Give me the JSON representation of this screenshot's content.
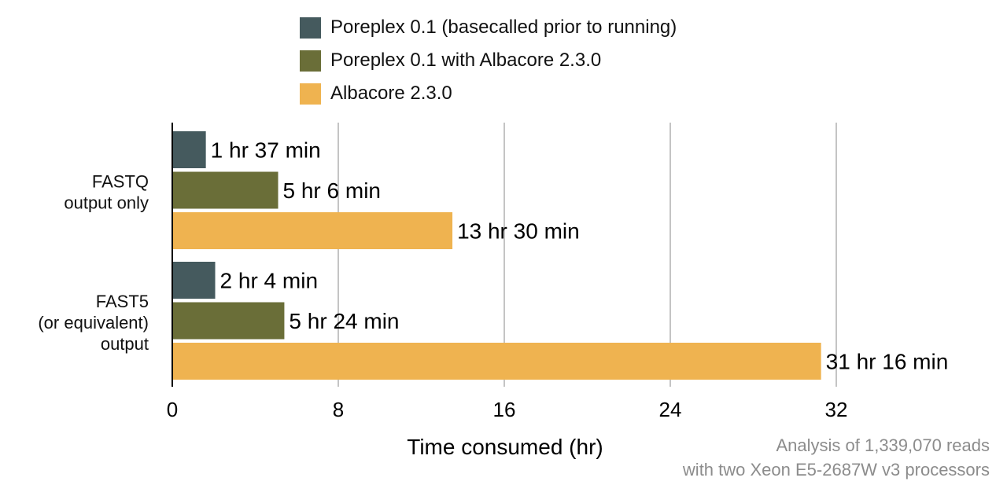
{
  "chart_data": {
    "type": "bar",
    "orientation": "horizontal",
    "categories": [
      [
        "FASTQ",
        "output only"
      ],
      [
        "FAST5",
        "(or equivalent)",
        "output"
      ]
    ],
    "series": [
      {
        "name": "Poreplex 0.1 (basecalled prior to running)",
        "color": "#455a5e",
        "values": [
          1.617,
          2.067
        ],
        "labels": [
          "1 hr 37 min",
          "2 hr 4 min"
        ]
      },
      {
        "name": "Poreplex 0.1 with Albacore 2.3.0",
        "color": "#6a6e38",
        "values": [
          5.1,
          5.4
        ],
        "labels": [
          "5 hr 6 min",
          "5 hr 24 min"
        ]
      },
      {
        "name": "Albacore 2.3.0",
        "color": "#efb350",
        "values": [
          13.5,
          31.267
        ],
        "labels": [
          "13 hr 30 min",
          "31 hr 16 min"
        ]
      }
    ],
    "xlabel": "Time consumed (hr)",
    "xlim": [
      0,
      32
    ],
    "xticks": [
      0,
      8,
      16,
      24,
      32
    ],
    "grid": "vertical",
    "legend_position": "top"
  },
  "note": [
    "Analysis of 1,339,070 reads",
    "with two Xeon E5-2687W v3 processors"
  ]
}
